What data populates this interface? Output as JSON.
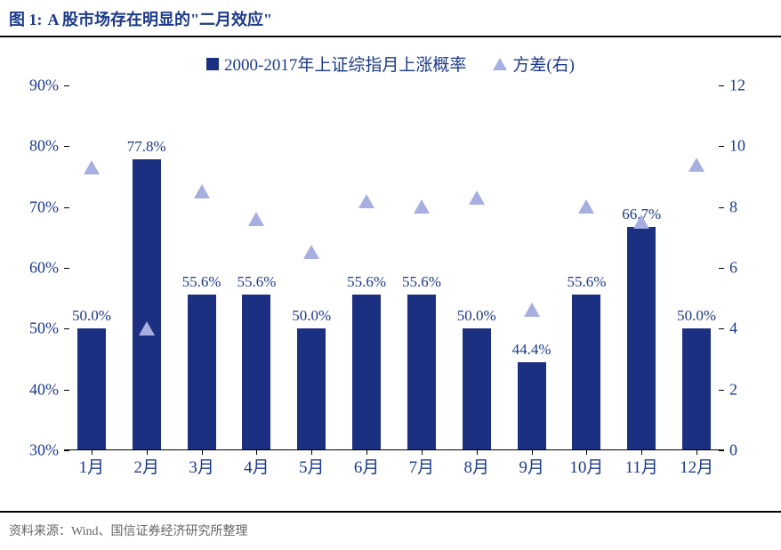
{
  "header": {
    "label": "图 1:",
    "title": "A 股市场存在明显的\"二月效应\""
  },
  "legend": {
    "series1": "2000-2017年上证综指月上涨概率",
    "series2": "方差(右)"
  },
  "chart": {
    "type": "bar+scatter",
    "categories": [
      "1月",
      "2月",
      "3月",
      "4月",
      "5月",
      "6月",
      "7月",
      "8月",
      "9月",
      "10月",
      "11月",
      "12月"
    ],
    "bar_values": [
      50.0,
      77.8,
      55.6,
      55.6,
      50.0,
      55.6,
      55.6,
      50.0,
      44.4,
      55.6,
      66.7,
      50.0
    ],
    "bar_labels": [
      "50.0%",
      "77.8%",
      "55.6%",
      "55.6%",
      "50.0%",
      "55.6%",
      "55.6%",
      "50.0%",
      "44.4%",
      "55.6%",
      "66.7%",
      "50.0%"
    ],
    "bar_color": "#1c3082",
    "variance_values": [
      9.3,
      4.0,
      8.5,
      7.6,
      6.5,
      8.2,
      8.0,
      8.3,
      4.6,
      8.0,
      7.5,
      9.4
    ],
    "marker_color": "#a7aee0",
    "y_left": {
      "min": 30,
      "max": 90,
      "step": 10,
      "suffix": "%"
    },
    "y_right": {
      "min": 0,
      "max": 12,
      "step": 2
    },
    "bar_width_ratio": 0.52,
    "axis_color": "#000000",
    "text_color": "#1c3a8a",
    "label_fontsize": 17,
    "tick_fontsize": 18
  },
  "footer": {
    "text": "资料来源：Wind、国信证券经济研究所整理"
  }
}
